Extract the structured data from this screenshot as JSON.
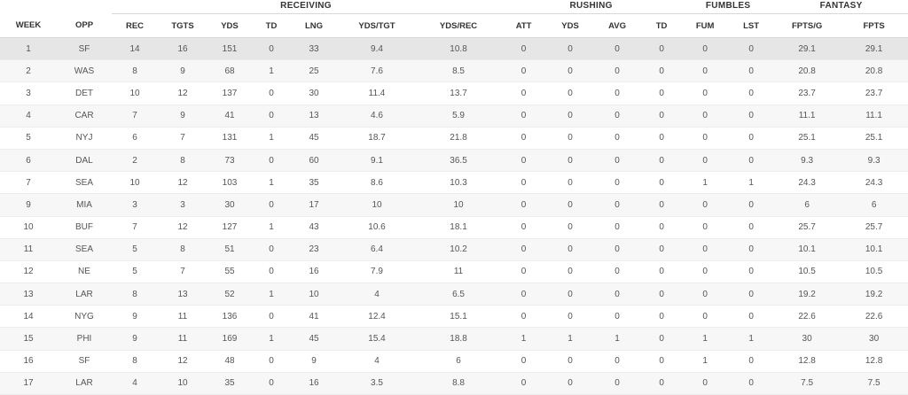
{
  "groups": {
    "receiving": "RECEIVING",
    "rushing": "RUSHING",
    "fumbles": "FUMBLES",
    "fantasy": "FANTASY"
  },
  "columns": [
    "WEEK",
    "OPP",
    "REC",
    "TGTS",
    "YDS",
    "TD",
    "LNG",
    "YDS/TGT",
    "YDS/REC",
    "ATT",
    "YDS",
    "AVG",
    "TD",
    "FUM",
    "LST",
    "FPTS/G",
    "FPTS"
  ],
  "colors": {
    "fumbles": "#e8414f",
    "fantasy": "#17a46a",
    "selected_row": "#e6e6e6"
  },
  "selected_row_index": 0,
  "rows": [
    [
      "1",
      "SF",
      "14",
      "16",
      "151",
      "0",
      "33",
      "9.4",
      "10.8",
      "0",
      "0",
      "0",
      "0",
      "0",
      "0",
      "29.1",
      "29.1"
    ],
    [
      "2",
      "WAS",
      "8",
      "9",
      "68",
      "1",
      "25",
      "7.6",
      "8.5",
      "0",
      "0",
      "0",
      "0",
      "0",
      "0",
      "20.8",
      "20.8"
    ],
    [
      "3",
      "DET",
      "10",
      "12",
      "137",
      "0",
      "30",
      "11.4",
      "13.7",
      "0",
      "0",
      "0",
      "0",
      "0",
      "0",
      "23.7",
      "23.7"
    ],
    [
      "4",
      "CAR",
      "7",
      "9",
      "41",
      "0",
      "13",
      "4.6",
      "5.9",
      "0",
      "0",
      "0",
      "0",
      "0",
      "0",
      "11.1",
      "11.1"
    ],
    [
      "5",
      "NYJ",
      "6",
      "7",
      "131",
      "1",
      "45",
      "18.7",
      "21.8",
      "0",
      "0",
      "0",
      "0",
      "0",
      "0",
      "25.1",
      "25.1"
    ],
    [
      "6",
      "DAL",
      "2",
      "8",
      "73",
      "0",
      "60",
      "9.1",
      "36.5",
      "0",
      "0",
      "0",
      "0",
      "0",
      "0",
      "9.3",
      "9.3"
    ],
    [
      "7",
      "SEA",
      "10",
      "12",
      "103",
      "1",
      "35",
      "8.6",
      "10.3",
      "0",
      "0",
      "0",
      "0",
      "1",
      "1",
      "24.3",
      "24.3"
    ],
    [
      "9",
      "MIA",
      "3",
      "3",
      "30",
      "0",
      "17",
      "10",
      "10",
      "0",
      "0",
      "0",
      "0",
      "0",
      "0",
      "6",
      "6"
    ],
    [
      "10",
      "BUF",
      "7",
      "12",
      "127",
      "1",
      "43",
      "10.6",
      "18.1",
      "0",
      "0",
      "0",
      "0",
      "0",
      "0",
      "25.7",
      "25.7"
    ],
    [
      "11",
      "SEA",
      "5",
      "8",
      "51",
      "0",
      "23",
      "6.4",
      "10.2",
      "0",
      "0",
      "0",
      "0",
      "0",
      "0",
      "10.1",
      "10.1"
    ],
    [
      "12",
      "NE",
      "5",
      "7",
      "55",
      "0",
      "16",
      "7.9",
      "11",
      "0",
      "0",
      "0",
      "0",
      "0",
      "0",
      "10.5",
      "10.5"
    ],
    [
      "13",
      "LAR",
      "8",
      "13",
      "52",
      "1",
      "10",
      "4",
      "6.5",
      "0",
      "0",
      "0",
      "0",
      "0",
      "0",
      "19.2",
      "19.2"
    ],
    [
      "14",
      "NYG",
      "9",
      "11",
      "136",
      "0",
      "41",
      "12.4",
      "15.1",
      "0",
      "0",
      "0",
      "0",
      "0",
      "0",
      "22.6",
      "22.6"
    ],
    [
      "15",
      "PHI",
      "9",
      "11",
      "169",
      "1",
      "45",
      "15.4",
      "18.8",
      "1",
      "1",
      "1",
      "0",
      "1",
      "1",
      "30",
      "30"
    ],
    [
      "16",
      "SF",
      "8",
      "12",
      "48",
      "0",
      "9",
      "4",
      "6",
      "0",
      "0",
      "0",
      "0",
      "1",
      "0",
      "12.8",
      "12.8"
    ],
    [
      "17",
      "LAR",
      "4",
      "10",
      "35",
      "0",
      "16",
      "3.5",
      "8.8",
      "0",
      "0",
      "0",
      "0",
      "0",
      "0",
      "7.5",
      "7.5"
    ]
  ]
}
